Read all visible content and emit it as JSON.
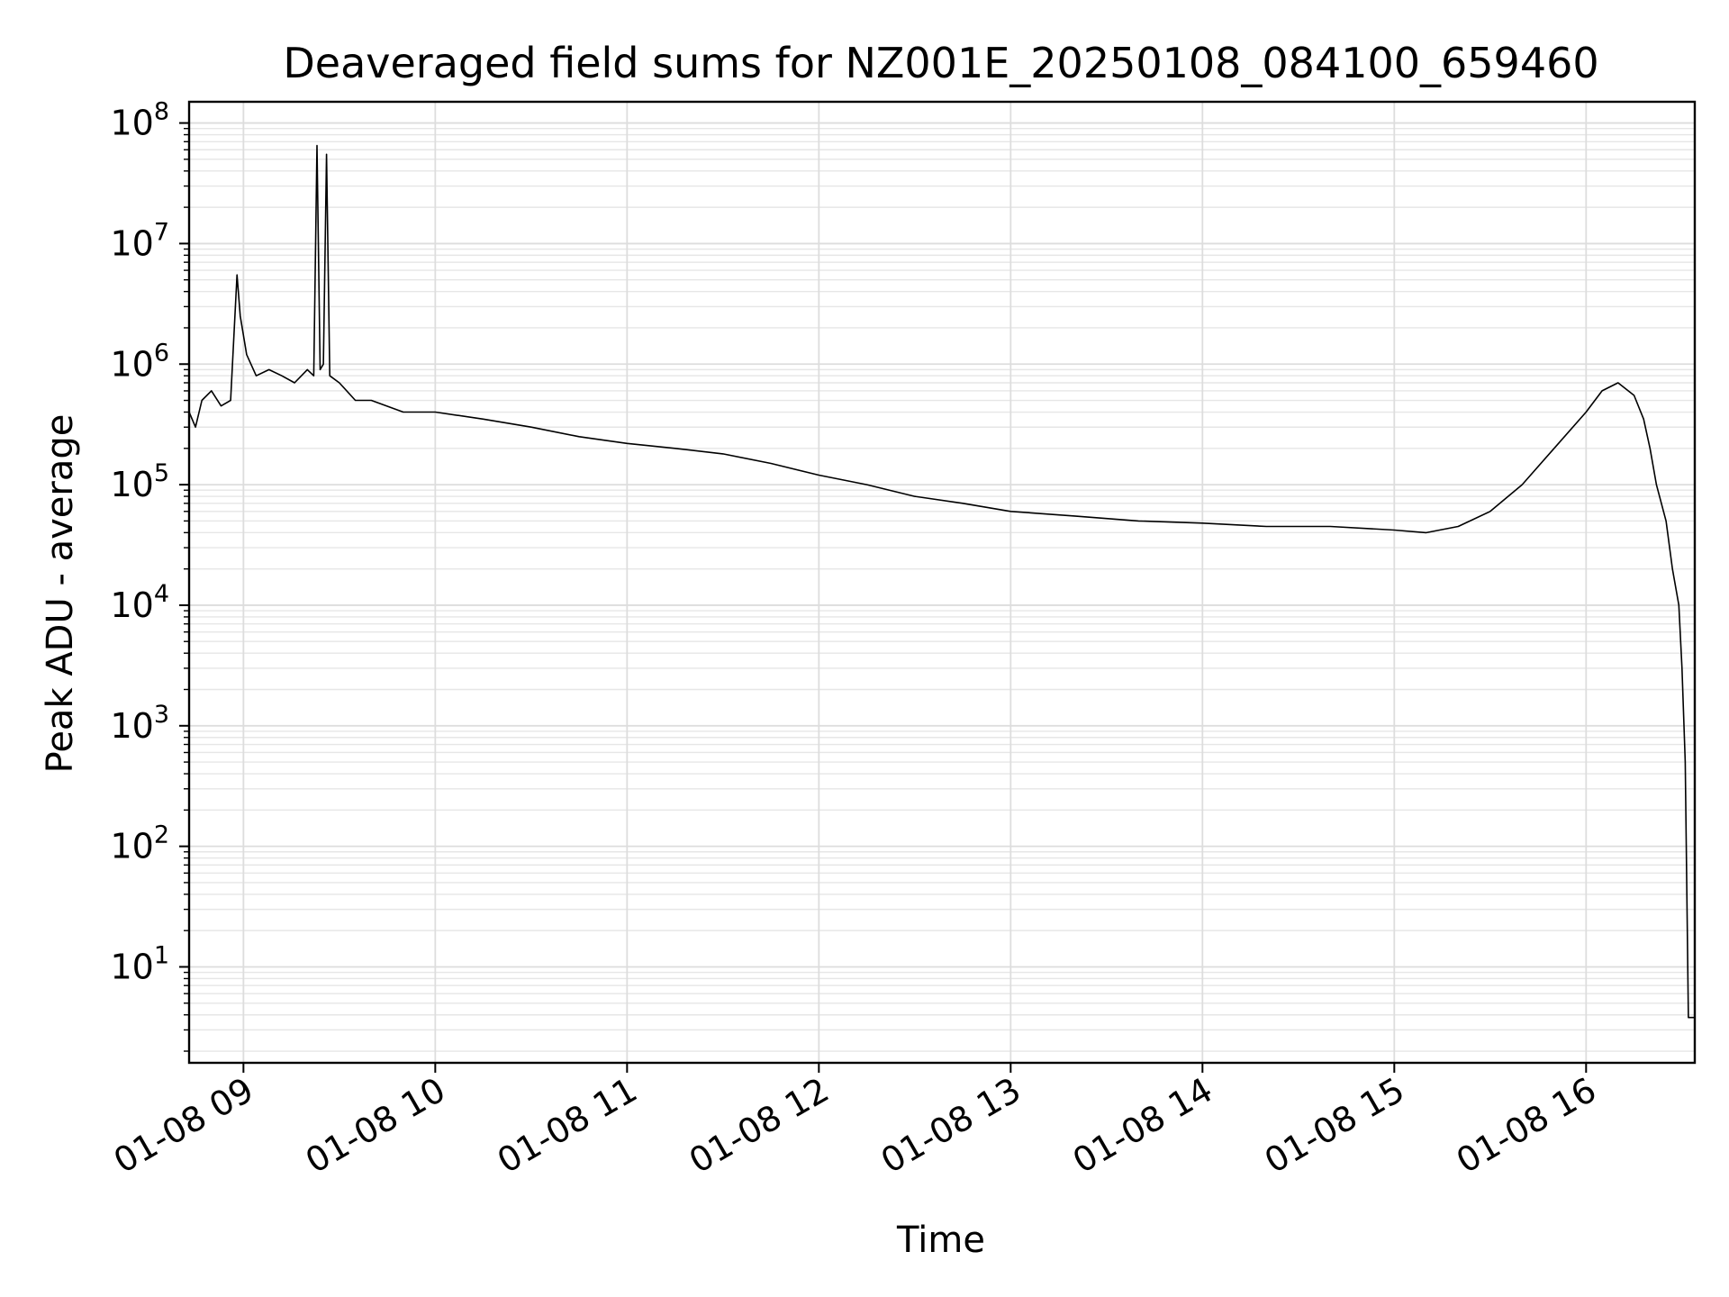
{
  "chart_data": {
    "type": "line",
    "title": "Deaveraged field sums for NZ001E_20250108_084100_659460",
    "xlabel": "Time",
    "ylabel": "Peak ADU - average",
    "yscale": "log",
    "ylim": [
      1.6,
      150000000
    ],
    "xlim": [
      "2025-01-08 08:43",
      "2025-01-08 16:34"
    ],
    "grid": true,
    "line_color": "#000000",
    "x_ticks": [
      {
        "label": "01-08 09",
        "value": "2025-01-08 09:00"
      },
      {
        "label": "01-08 10",
        "value": "2025-01-08 10:00"
      },
      {
        "label": "01-08 11",
        "value": "2025-01-08 11:00"
      },
      {
        "label": "01-08 12",
        "value": "2025-01-08 12:00"
      },
      {
        "label": "01-08 13",
        "value": "2025-01-08 13:00"
      },
      {
        "label": "01-08 14",
        "value": "2025-01-08 14:00"
      },
      {
        "label": "01-08 15",
        "value": "2025-01-08 15:00"
      },
      {
        "label": "01-08 16",
        "value": "2025-01-08 16:00"
      }
    ],
    "y_ticks": [
      {
        "base": "10",
        "exp": "1",
        "value": 10
      },
      {
        "base": "10",
        "exp": "2",
        "value": 100
      },
      {
        "base": "10",
        "exp": "3",
        "value": 1000
      },
      {
        "base": "10",
        "exp": "4",
        "value": 10000
      },
      {
        "base": "10",
        "exp": "5",
        "value": 100000
      },
      {
        "base": "10",
        "exp": "6",
        "value": 1000000
      },
      {
        "base": "10",
        "exp": "7",
        "value": 10000000
      },
      {
        "base": "10",
        "exp": "8",
        "value": 100000000
      }
    ],
    "series": [
      {
        "x": [
          "2025-01-08 08:43",
          "2025-01-08 08:45",
          "2025-01-08 08:47",
          "2025-01-08 08:50",
          "2025-01-08 08:53",
          "2025-01-08 08:56",
          "2025-01-08 08:58",
          "2025-01-08 08:59",
          "2025-01-08 09:01",
          "2025-01-08 09:04",
          "2025-01-08 09:08",
          "2025-01-08 09:12",
          "2025-01-08 09:16",
          "2025-01-08 09:20",
          "2025-01-08 09:22",
          "2025-01-08 09:23",
          "2025-01-08 09:24",
          "2025-01-08 09:25",
          "2025-01-08 09:26",
          "2025-01-08 09:27",
          "2025-01-08 09:30",
          "2025-01-08 09:35",
          "2025-01-08 09:40",
          "2025-01-08 09:50",
          "2025-01-08 10:00",
          "2025-01-08 10:15",
          "2025-01-08 10:30",
          "2025-01-08 10:45",
          "2025-01-08 11:00",
          "2025-01-08 11:15",
          "2025-01-08 11:30",
          "2025-01-08 11:45",
          "2025-01-08 12:00",
          "2025-01-08 12:15",
          "2025-01-08 12:30",
          "2025-01-08 12:45",
          "2025-01-08 13:00",
          "2025-01-08 13:20",
          "2025-01-08 13:40",
          "2025-01-08 14:00",
          "2025-01-08 14:20",
          "2025-01-08 14:40",
          "2025-01-08 15:00",
          "2025-01-08 15:10",
          "2025-01-08 15:20",
          "2025-01-08 15:30",
          "2025-01-08 15:40",
          "2025-01-08 15:50",
          "2025-01-08 16:00",
          "2025-01-08 16:05",
          "2025-01-08 16:10",
          "2025-01-08 16:15",
          "2025-01-08 16:18",
          "2025-01-08 16:20",
          "2025-01-08 16:22",
          "2025-01-08 16:25",
          "2025-01-08 16:27",
          "2025-01-08 16:29",
          "2025-01-08 16:30",
          "2025-01-08 16:31",
          "2025-01-08 16:32",
          "2025-01-08 16:33",
          "2025-01-08 16:34"
        ],
        "y": [
          400000,
          300000,
          500000,
          600000,
          450000,
          500000,
          5500000,
          2500000,
          1200000,
          800000,
          900000,
          800000,
          700000,
          900000,
          800000,
          65000000,
          900000,
          1000000,
          55000000,
          800000,
          700000,
          500000,
          500000,
          400000,
          400000,
          350000,
          300000,
          250000,
          220000,
          200000,
          180000,
          150000,
          120000,
          100000,
          80000,
          70000,
          60000,
          55000,
          50000,
          48000,
          45000,
          45000,
          42000,
          40000,
          45000,
          60000,
          100000,
          200000,
          400000,
          600000,
          700000,
          550000,
          350000,
          200000,
          100000,
          50000,
          20000,
          10000,
          3000,
          500,
          3.8,
          3.8,
          3.8
        ]
      }
    ]
  }
}
